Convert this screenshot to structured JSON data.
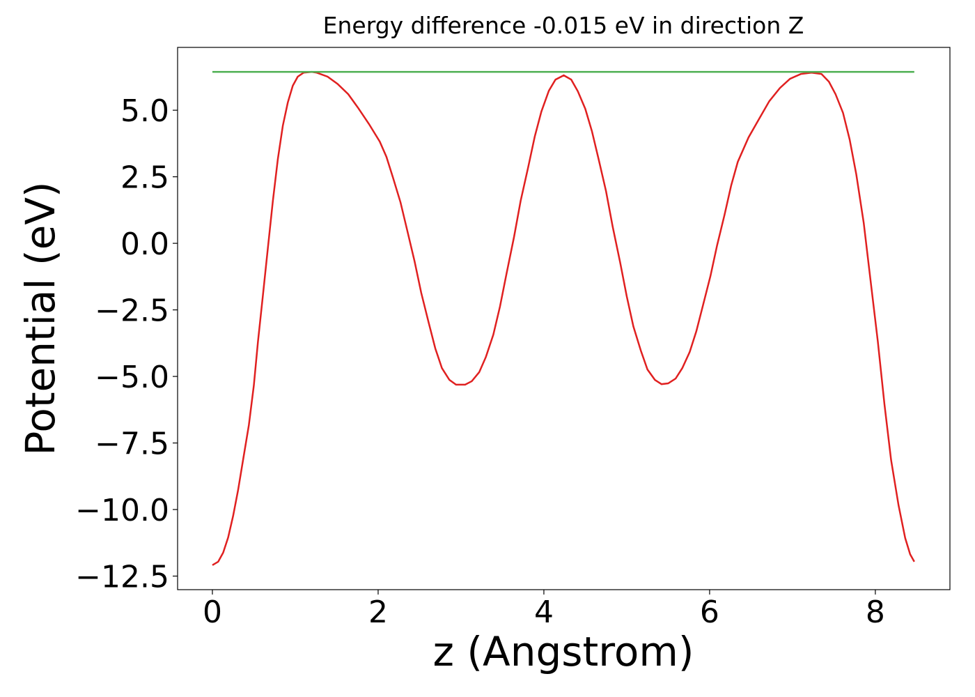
{
  "chart_data": {
    "type": "line",
    "title": "Energy difference -0.015 eV in direction Z",
    "x_label": "z (Angstrom)",
    "y_label": "Potential (eV)",
    "xlim": [
      -0.42,
      8.9
    ],
    "ylim": [
      -13.01,
      7.36
    ],
    "xticks": [
      0,
      2,
      4,
      6,
      8
    ],
    "yticks": [
      {
        "value": 5,
        "label": "5.0"
      },
      {
        "value": 2.5,
        "label": "2.5"
      },
      {
        "value": 0,
        "label": "0.0"
      },
      {
        "value": -2.5,
        "label": "−2.5"
      },
      {
        "value": -5,
        "label": "−5.0"
      },
      {
        "value": -7.5,
        "label": "−7.5"
      },
      {
        "value": -10,
        "label": "−10.0"
      },
      {
        "value": -12.5,
        "label": "−12.5"
      }
    ],
    "series": [
      {
        "color": "#e02020",
        "x": [
          0,
          0.07,
          0.13,
          0.19,
          0.25,
          0.31,
          0.37,
          0.44,
          0.5,
          0.55,
          0.61,
          0.67,
          0.73,
          0.79,
          0.85,
          0.91,
          0.97,
          1.03,
          1.1,
          1.2,
          1.26,
          1.39,
          1.51,
          1.64,
          1.76,
          1.89,
          2.02,
          2.1,
          2.18,
          2.27,
          2.35,
          2.44,
          2.52,
          2.61,
          2.69,
          2.77,
          2.86,
          2.94,
          3.05,
          3.13,
          3.22,
          3.3,
          3.39,
          3.47,
          3.55,
          3.64,
          3.72,
          3.81,
          3.89,
          3.97,
          4.06,
          4.14,
          4.24,
          4.33,
          4.41,
          4.5,
          4.58,
          4.66,
          4.75,
          4.83,
          4.92,
          5.0,
          5.08,
          5.17,
          5.25,
          5.34,
          5.42,
          5.5,
          5.59,
          5.67,
          5.76,
          5.84,
          5.92,
          6.01,
          6.09,
          6.18,
          6.26,
          6.34,
          6.47,
          6.6,
          6.72,
          6.85,
          6.97,
          7.1,
          7.23,
          7.35,
          7.44,
          7.52,
          7.61,
          7.69,
          7.77,
          7.86,
          7.94,
          8.03,
          8.11,
          8.19,
          8.28,
          8.36,
          8.42,
          8.47
        ],
        "values": [
          -12.09,
          -11.96,
          -11.62,
          -11.05,
          -10.24,
          -9.27,
          -8.14,
          -6.83,
          -5.34,
          -3.69,
          -1.94,
          -0.16,
          1.6,
          3.17,
          4.42,
          5.29,
          5.92,
          6.26,
          6.41,
          6.44,
          6.41,
          6.26,
          5.99,
          5.6,
          5.08,
          4.48,
          3.82,
          3.25,
          2.46,
          1.54,
          0.5,
          -0.68,
          -1.86,
          -2.98,
          -3.95,
          -4.69,
          -5.13,
          -5.31,
          -5.31,
          -5.18,
          -4.84,
          -4.27,
          -3.43,
          -2.38,
          -1.13,
          0.24,
          1.6,
          2.85,
          4.01,
          4.95,
          5.73,
          6.15,
          6.31,
          6.15,
          5.71,
          5.05,
          4.21,
          3.17,
          1.96,
          0.63,
          -0.71,
          -1.99,
          -3.12,
          -4.03,
          -4.74,
          -5.13,
          -5.29,
          -5.26,
          -5.08,
          -4.69,
          -4.08,
          -3.3,
          -2.33,
          -1.23,
          -0.08,
          1.07,
          2.17,
          3.06,
          3.98,
          4.69,
          5.34,
          5.84,
          6.18,
          6.36,
          6.41,
          6.36,
          6.07,
          5.6,
          4.9,
          3.9,
          2.59,
          0.76,
          -1.34,
          -3.69,
          -6.05,
          -8.14,
          -9.84,
          -11.07,
          -11.68,
          -11.96
        ]
      },
      {
        "color": "#4caf50",
        "x": [
          0,
          8.47
        ],
        "values": [
          6.44,
          6.44
        ]
      }
    ]
  }
}
